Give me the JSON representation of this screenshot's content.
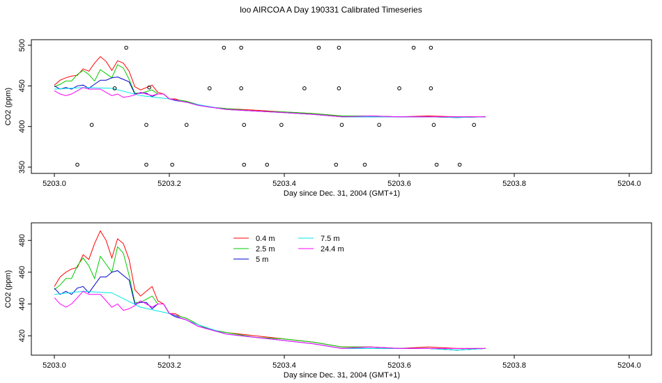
{
  "title": "loo AIRCOA A  Day 190331  Calibrated Timeseries",
  "chart_data": [
    {
      "type": "scatter",
      "xlabel": "Day since Dec. 31, 2004 (GMT+1)",
      "ylabel": "CO2 (ppm)",
      "xlim": [
        5203.0,
        5204.0
      ],
      "ylim": [
        350,
        500
      ],
      "xticks": [
        "5203.0",
        "5203.2",
        "5203.4",
        "5203.6",
        "5203.8",
        "5204.0"
      ],
      "yticks": [
        "350",
        "400",
        "450",
        "500"
      ],
      "grid": false,
      "lines": [
        {
          "color": "#ff0000",
          "x": [
            5203.0,
            5203.01,
            5203.02,
            5203.03,
            5203.04,
            5203.05,
            5203.06,
            5203.07,
            5203.08,
            5203.09,
            5203.1,
            5203.11,
            5203.12,
            5203.13,
            5203.14,
            5203.15,
            5203.16,
            5203.17,
            5203.18,
            5203.19,
            5203.2,
            5203.21,
            5203.22,
            5203.23,
            5203.24,
            5203.25,
            5203.27,
            5203.3,
            5203.35,
            5203.4,
            5203.45,
            5203.5,
            5203.55,
            5203.6,
            5203.65,
            5203.7,
            5203.75
          ],
          "y": [
            451,
            457,
            460,
            462,
            463,
            471,
            468,
            478,
            486,
            480,
            469,
            481,
            478,
            468,
            449,
            445,
            448,
            451,
            442,
            440,
            434,
            434,
            432,
            431,
            429,
            427,
            424,
            422,
            420,
            418,
            416,
            413,
            413,
            412,
            413,
            412,
            412
          ]
        },
        {
          "color": "#00cc00",
          "x": [
            5203.0,
            5203.01,
            5203.02,
            5203.03,
            5203.04,
            5203.05,
            5203.06,
            5203.07,
            5203.08,
            5203.09,
            5203.1,
            5203.11,
            5203.12,
            5203.13,
            5203.14,
            5203.15,
            5203.16,
            5203.17,
            5203.18,
            5203.19,
            5203.2,
            5203.21,
            5203.22,
            5203.23,
            5203.24,
            5203.25,
            5203.27,
            5203.3,
            5203.35,
            5203.4,
            5203.45,
            5203.5,
            5203.55,
            5203.6,
            5203.65,
            5203.7,
            5203.75
          ],
          "y": [
            449,
            452,
            456,
            456,
            464,
            469,
            464,
            456,
            470,
            465,
            460,
            476,
            472,
            458,
            441,
            441,
            443,
            445,
            440,
            440,
            434,
            433,
            432,
            431,
            429,
            427,
            424,
            422,
            419,
            418,
            416,
            413,
            413,
            412,
            412,
            411,
            412
          ]
        },
        {
          "color": "#0000cc",
          "x": [
            5203.0,
            5203.01,
            5203.02,
            5203.03,
            5203.04,
            5203.05,
            5203.06,
            5203.07,
            5203.08,
            5203.09,
            5203.1,
            5203.11,
            5203.12,
            5203.13,
            5203.14,
            5203.15,
            5203.16,
            5203.17,
            5203.18,
            5203.19,
            5203.2,
            5203.21,
            5203.22,
            5203.23,
            5203.24,
            5203.25,
            5203.27,
            5203.3,
            5203.35,
            5203.4,
            5203.45,
            5203.5,
            5203.55,
            5203.6,
            5203.65,
            5203.7,
            5203.75
          ],
          "y": [
            450,
            446,
            448,
            446,
            450,
            451,
            447,
            452,
            457,
            457,
            460,
            461,
            458,
            455,
            440,
            441,
            441,
            437,
            440,
            440,
            434,
            432,
            431,
            430,
            428,
            426,
            424,
            421,
            419,
            417,
            415,
            412,
            412,
            412,
            412,
            411,
            412
          ]
        },
        {
          "color": "#00e5e5",
          "x": [
            5203.0,
            5203.05,
            5203.1,
            5203.15,
            5203.2,
            5203.25,
            5203.3,
            5203.35,
            5203.4,
            5203.45,
            5203.5,
            5203.55,
            5203.6,
            5203.65,
            5203.7,
            5203.75
          ],
          "y": [
            446,
            448,
            447,
            438,
            434,
            427,
            421,
            419,
            417,
            415,
            412,
            412,
            412,
            412,
            411,
            412
          ]
        },
        {
          "color": "#ff00ff",
          "x": [
            5203.0,
            5203.01,
            5203.02,
            5203.03,
            5203.04,
            5203.05,
            5203.06,
            5203.07,
            5203.08,
            5203.09,
            5203.1,
            5203.11,
            5203.12,
            5203.13,
            5203.14,
            5203.15,
            5203.16,
            5203.17,
            5203.18,
            5203.19,
            5203.2,
            5203.21,
            5203.22,
            5203.23,
            5203.24,
            5203.25,
            5203.27,
            5203.3,
            5203.35,
            5203.4,
            5203.45,
            5203.5,
            5203.55,
            5203.6,
            5203.65,
            5203.7,
            5203.75
          ],
          "y": [
            444,
            440,
            438,
            440,
            444,
            448,
            446,
            446,
            446,
            442,
            438,
            440,
            436,
            437,
            439,
            442,
            440,
            438,
            440,
            440,
            434,
            433,
            431,
            430,
            428,
            426,
            424,
            421,
            419,
            417,
            415,
            412,
            413,
            412,
            412,
            412,
            412
          ]
        }
      ],
      "points": {
        "marker": "open-circle",
        "x": [
          5203.04,
          5203.065,
          5203.105,
          5203.125,
          5203.16,
          5203.16,
          5203.165,
          5203.205,
          5203.23,
          5203.27,
          5203.295,
          5203.325,
          5203.325,
          5203.33,
          5203.33,
          5203.37,
          5203.395,
          5203.435,
          5203.46,
          5203.49,
          5203.495,
          5203.495,
          5203.5,
          5203.54,
          5203.565,
          5203.6,
          5203.625,
          5203.655,
          5203.655,
          5203.66,
          5203.665,
          5203.705,
          5203.73
        ],
        "y": [
          353,
          402,
          447,
          497,
          402,
          353,
          448,
          353,
          402,
          447,
          497,
          497,
          447,
          402,
          353,
          353,
          402,
          447,
          497,
          353,
          497,
          447,
          402,
          353,
          402,
          447,
          497,
          497,
          447,
          402,
          353,
          353,
          402
        ]
      }
    },
    {
      "type": "line",
      "xlabel": "Day since Dec. 31, 2004 (GMT+1)",
      "ylabel": "CO2 (ppm)",
      "xlim": [
        5203.0,
        5204.0
      ],
      "ylim": [
        410,
        488
      ],
      "xticks": [
        "5203.0",
        "5203.2",
        "5203.4",
        "5203.6",
        "5203.8",
        "5204.0"
      ],
      "yticks": [
        "420",
        "440",
        "460",
        "480"
      ],
      "grid": false,
      "legend": "top-center",
      "series": [
        {
          "name": "0.4 m",
          "color": "#ff0000",
          "x": [
            5203.0,
            5203.01,
            5203.02,
            5203.03,
            5203.04,
            5203.05,
            5203.06,
            5203.07,
            5203.08,
            5203.09,
            5203.1,
            5203.11,
            5203.12,
            5203.13,
            5203.14,
            5203.15,
            5203.16,
            5203.17,
            5203.18,
            5203.19,
            5203.2,
            5203.21,
            5203.22,
            5203.23,
            5203.24,
            5203.25,
            5203.27,
            5203.3,
            5203.35,
            5203.4,
            5203.45,
            5203.5,
            5203.55,
            5203.6,
            5203.65,
            5203.7,
            5203.75
          ],
          "y": [
            451,
            457,
            460,
            462,
            463,
            471,
            468,
            478,
            486,
            480,
            469,
            481,
            478,
            468,
            449,
            445,
            448,
            451,
            442,
            440,
            434,
            434,
            432,
            431,
            429,
            427,
            424,
            422,
            420,
            418,
            416,
            413,
            413,
            412,
            413,
            412,
            412
          ]
        },
        {
          "name": "2.5 m",
          "color": "#00cc00",
          "x": [
            5203.0,
            5203.01,
            5203.02,
            5203.03,
            5203.04,
            5203.05,
            5203.06,
            5203.07,
            5203.08,
            5203.09,
            5203.1,
            5203.11,
            5203.12,
            5203.13,
            5203.14,
            5203.15,
            5203.16,
            5203.17,
            5203.18,
            5203.19,
            5203.2,
            5203.21,
            5203.22,
            5203.23,
            5203.24,
            5203.25,
            5203.27,
            5203.3,
            5203.35,
            5203.4,
            5203.45,
            5203.5,
            5203.55,
            5203.6,
            5203.65,
            5203.7,
            5203.75
          ],
          "y": [
            449,
            452,
            456,
            456,
            464,
            469,
            464,
            456,
            470,
            465,
            460,
            476,
            472,
            458,
            441,
            441,
            443,
            445,
            440,
            440,
            434,
            433,
            432,
            431,
            429,
            427,
            424,
            422,
            419,
            418,
            416,
            413,
            413,
            412,
            412,
            411,
            412
          ]
        },
        {
          "name": "5 m",
          "color": "#0000cc",
          "x": [
            5203.0,
            5203.01,
            5203.02,
            5203.03,
            5203.04,
            5203.05,
            5203.06,
            5203.07,
            5203.08,
            5203.09,
            5203.1,
            5203.11,
            5203.12,
            5203.13,
            5203.14,
            5203.15,
            5203.16,
            5203.17,
            5203.18,
            5203.19,
            5203.2,
            5203.21,
            5203.22,
            5203.23,
            5203.24,
            5203.25,
            5203.27,
            5203.3,
            5203.35,
            5203.4,
            5203.45,
            5203.5,
            5203.55,
            5203.6,
            5203.65,
            5203.7,
            5203.75
          ],
          "y": [
            450,
            446,
            448,
            446,
            450,
            451,
            447,
            452,
            457,
            457,
            460,
            461,
            458,
            455,
            440,
            441,
            441,
            437,
            440,
            440,
            434,
            432,
            431,
            430,
            428,
            426,
            424,
            421,
            419,
            417,
            415,
            412,
            412,
            412,
            412,
            411,
            412
          ]
        },
        {
          "name": "7.5 m",
          "color": "#00e5e5",
          "x": [
            5203.0,
            5203.05,
            5203.1,
            5203.15,
            5203.2,
            5203.25,
            5203.3,
            5203.35,
            5203.4,
            5203.45,
            5203.5,
            5203.55,
            5203.6,
            5203.65,
            5203.7,
            5203.75
          ],
          "y": [
            446,
            448,
            447,
            438,
            434,
            427,
            421,
            419,
            417,
            415,
            412,
            412,
            412,
            412,
            411,
            412
          ]
        },
        {
          "name": "24.4 m",
          "color": "#ff00ff",
          "x": [
            5203.0,
            5203.01,
            5203.02,
            5203.03,
            5203.04,
            5203.05,
            5203.06,
            5203.07,
            5203.08,
            5203.09,
            5203.1,
            5203.11,
            5203.12,
            5203.13,
            5203.14,
            5203.15,
            5203.16,
            5203.17,
            5203.18,
            5203.19,
            5203.2,
            5203.21,
            5203.22,
            5203.23,
            5203.24,
            5203.25,
            5203.27,
            5203.3,
            5203.35,
            5203.4,
            5203.45,
            5203.5,
            5203.55,
            5203.6,
            5203.65,
            5203.7,
            5203.75
          ],
          "y": [
            444,
            440,
            438,
            440,
            444,
            448,
            446,
            446,
            446,
            442,
            438,
            440,
            436,
            437,
            439,
            442,
            440,
            438,
            440,
            440,
            434,
            433,
            431,
            430,
            428,
            426,
            424,
            421,
            419,
            417,
            415,
            412,
            413,
            412,
            412,
            412,
            412
          ]
        }
      ]
    }
  ]
}
